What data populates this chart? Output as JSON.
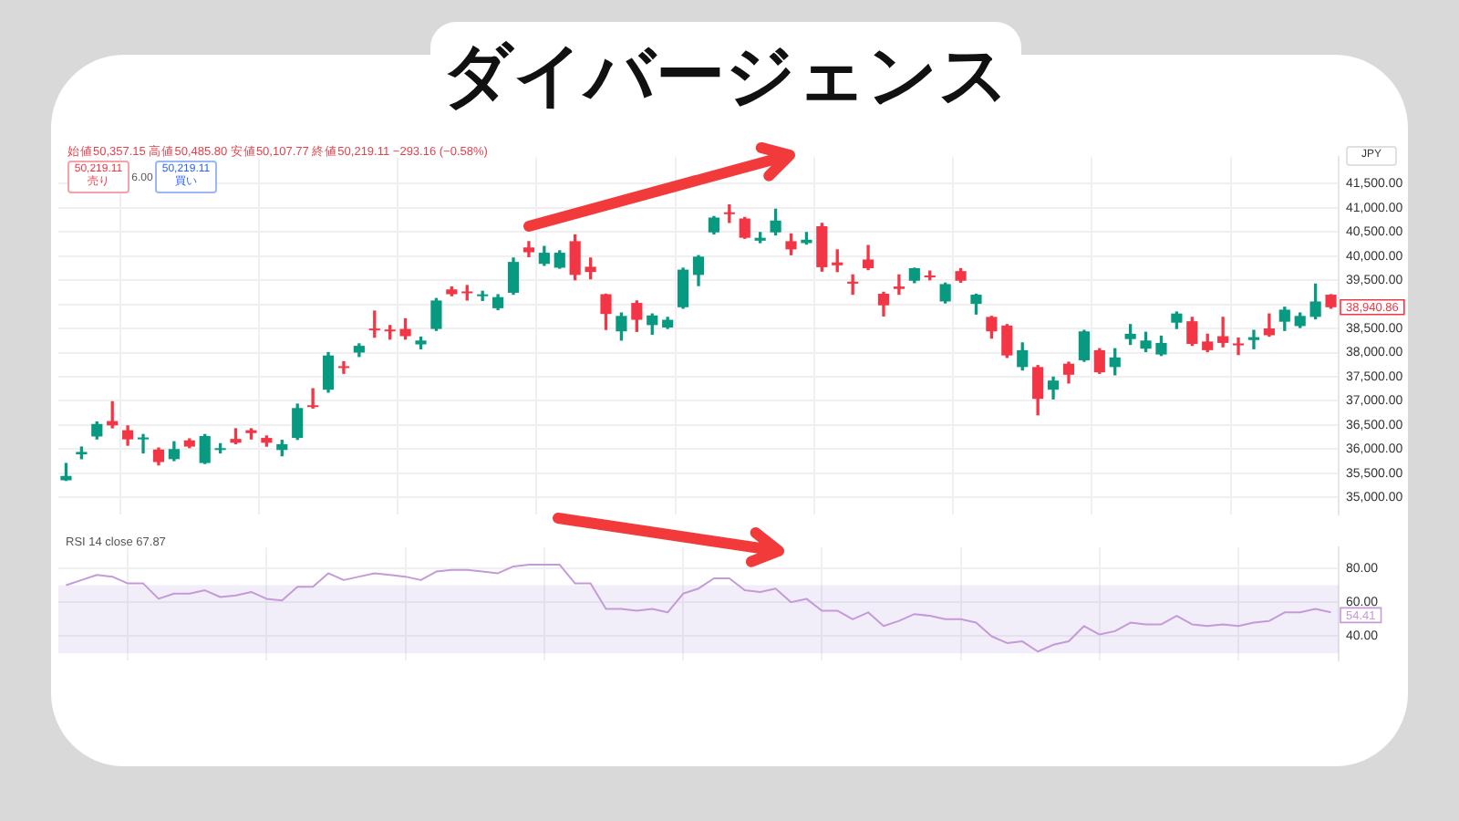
{
  "chart_data": [
    {
      "type": "candlestick",
      "title": "ダイバージェンス",
      "subtitle": "始値50,357.15 高値50,485.80 安値50,107.77 終値50,219.11 −293.16 (−0.58%)",
      "categories": [
        null,
        null,
        null,
        null,
        null,
        null,
        null,
        null,
        null,
        null,
        null,
        null,
        null,
        null,
        null,
        null,
        null,
        null,
        null,
        null,
        null,
        null,
        null,
        null,
        null,
        null,
        null,
        null,
        null,
        null,
        null,
        null,
        null,
        null,
        null,
        null,
        null,
        null,
        null,
        null,
        null,
        null,
        null,
        null,
        null,
        null,
        null,
        null,
        null,
        null,
        null,
        null,
        null,
        null,
        null,
        null,
        null,
        null,
        null,
        null,
        null,
        null,
        null,
        null,
        null,
        null,
        null,
        null,
        null,
        null,
        null,
        null,
        null,
        null,
        null,
        null,
        null,
        null,
        null,
        null,
        null,
        null,
        null
      ],
      "ohlc": [
        [
          35350,
          35700,
          35350,
          35440
        ],
        [
          35890,
          36040,
          35800,
          35940
        ],
        [
          36260,
          36560,
          36210,
          36520
        ],
        [
          36580,
          36980,
          36440,
          36490
        ],
        [
          36390,
          36480,
          36080,
          36200
        ],
        [
          36200,
          36300,
          35920,
          36240
        ],
        [
          35990,
          36020,
          35670,
          35730
        ],
        [
          35790,
          36150,
          35760,
          36000
        ],
        [
          36180,
          36210,
          36030,
          36050
        ],
        [
          35710,
          36300,
          35700,
          36270
        ],
        [
          35980,
          36110,
          35920,
          36000
        ],
        [
          36210,
          36420,
          36110,
          36130
        ],
        [
          36390,
          36420,
          36210,
          36330
        ],
        [
          36230,
          36270,
          36060,
          36130
        ],
        [
          35980,
          36180,
          35860,
          36100
        ],
        [
          36230,
          36930,
          36200,
          36850
        ],
        [
          36890,
          37250,
          36850,
          36870
        ],
        [
          37230,
          38000,
          37180,
          37940
        ],
        [
          37700,
          37810,
          37570,
          37680
        ],
        [
          38000,
          38180,
          37920,
          38140
        ],
        [
          38490,
          38860,
          38320,
          38460
        ],
        [
          38460,
          38560,
          38280,
          38440
        ],
        [
          38490,
          38700,
          38280,
          38340
        ],
        [
          38170,
          38320,
          38080,
          38250
        ],
        [
          38490,
          39120,
          38460,
          39080
        ],
        [
          39310,
          39360,
          39180,
          39210
        ],
        [
          39260,
          39390,
          39090,
          39230
        ],
        [
          39170,
          39270,
          39080,
          39200
        ],
        [
          38920,
          39200,
          38890,
          39150
        ],
        [
          39240,
          39960,
          39210,
          39880
        ],
        [
          40180,
          40300,
          39990,
          40080
        ],
        [
          39840,
          40200,
          39810,
          40070
        ],
        [
          39760,
          40110,
          39750,
          40070
        ],
        [
          40310,
          40440,
          39510,
          39610
        ],
        [
          39780,
          39960,
          39530,
          39670
        ],
        [
          39210,
          39210,
          38480,
          38800
        ],
        [
          38440,
          38820,
          38260,
          38760
        ],
        [
          39030,
          39070,
          38440,
          38680
        ],
        [
          38570,
          38800,
          38380,
          38770
        ],
        [
          38520,
          38730,
          38500,
          38680
        ],
        [
          38940,
          39750,
          38920,
          39720
        ],
        [
          39610,
          40010,
          39390,
          39990
        ],
        [
          40490,
          40820,
          40460,
          40800
        ],
        [
          40910,
          41060,
          40700,
          40870
        ],
        [
          40780,
          40800,
          40370,
          40380
        ],
        [
          40320,
          40490,
          40280,
          40380
        ],
        [
          40490,
          40970,
          40440,
          40740
        ],
        [
          40310,
          40460,
          40030,
          40140
        ],
        [
          40270,
          40490,
          40250,
          40340
        ],
        [
          40620,
          40680,
          39690,
          39770
        ],
        [
          39870,
          40130,
          39680,
          39810
        ],
        [
          39470,
          39610,
          39210,
          39430
        ],
        [
          39930,
          40220,
          39720,
          39750
        ],
        [
          39220,
          39250,
          38760,
          38980
        ],
        [
          39370,
          39610,
          39210,
          39320
        ],
        [
          39490,
          39750,
          39450,
          39750
        ],
        [
          39590,
          39690,
          39510,
          39560
        ],
        [
          39060,
          39440,
          39030,
          39420
        ],
        [
          39690,
          39740,
          39460,
          39490
        ],
        [
          39010,
          39210,
          38800,
          39200
        ],
        [
          38740,
          38750,
          38300,
          38440
        ],
        [
          38560,
          38580,
          37900,
          37940
        ],
        [
          37700,
          38200,
          37640,
          38050
        ],
        [
          37700,
          37730,
          36710,
          37040
        ],
        [
          37230,
          37490,
          37040,
          37420
        ],
        [
          37770,
          37800,
          37370,
          37540
        ],
        [
          37840,
          38460,
          37820,
          38440
        ],
        [
          38050,
          38080,
          37570,
          37590
        ],
        [
          37700,
          38080,
          37540,
          37900
        ],
        [
          38280,
          38580,
          38170,
          38390
        ],
        [
          38080,
          38420,
          38020,
          38250
        ],
        [
          37960,
          38340,
          37940,
          38200
        ],
        [
          38620,
          38840,
          38500,
          38810
        ],
        [
          38650,
          38730,
          38150,
          38180
        ],
        [
          38230,
          38380,
          38020,
          38050
        ],
        [
          38340,
          38730,
          38120,
          38200
        ],
        [
          38190,
          38300,
          37960,
          38150
        ],
        [
          38260,
          38460,
          38080,
          38320
        ],
        [
          38500,
          38800,
          38340,
          38360
        ],
        [
          38640,
          38940,
          38460,
          38890
        ],
        [
          38550,
          38820,
          38520,
          38760
        ],
        [
          38740,
          39420,
          38700,
          39060
        ],
        [
          39200,
          39200,
          38920,
          38940
        ]
      ],
      "ylim": [
        34650,
        42050
      ],
      "yticks": [
        {
          "value": 35000,
          "label": "35,000.00"
        },
        {
          "value": 35500,
          "label": "35,500.00"
        },
        {
          "value": 36000,
          "label": "36,000.00"
        },
        {
          "value": 36500,
          "label": "36,500.00"
        },
        {
          "value": 37000,
          "label": "37,000.00"
        },
        {
          "value": 37500,
          "label": "37,500.00"
        },
        {
          "value": 38000,
          "label": "38,000.00"
        },
        {
          "value": 38500,
          "label": "38,500.00"
        },
        {
          "value": 39000,
          "label": null
        },
        {
          "value": 39500,
          "label": "39,500.00"
        },
        {
          "value": 40000,
          "label": "40,000.00"
        },
        {
          "value": 40500,
          "label": "40,500.00"
        },
        {
          "value": 41000,
          "label": "41,000.00"
        },
        {
          "value": 41500,
          "label": "41,500.00"
        }
      ],
      "grid": true,
      "tick_labels": "y",
      "annotations": [
        "50,219.11 売り",
        "6.00",
        "50,219.11 買い",
        "JPY",
        "38,940.86"
      ]
    },
    {
      "type": "line",
      "title": "RSI 14 close 67.87",
      "categories": [
        null,
        null,
        null,
        null,
        null,
        null,
        null,
        null,
        null,
        null,
        null,
        null,
        null,
        null,
        null,
        null,
        null,
        null,
        null,
        null,
        null,
        null,
        null,
        null,
        null,
        null,
        null,
        null,
        null,
        null,
        null,
        null,
        null,
        null,
        null,
        null,
        null,
        null,
        null,
        null,
        null,
        null,
        null,
        null,
        null,
        null,
        null,
        null,
        null,
        null,
        null,
        null,
        null,
        null,
        null,
        null,
        null,
        null,
        null,
        null,
        null,
        null,
        null,
        null,
        null,
        null,
        null,
        null,
        null,
        null,
        null,
        null,
        null,
        null,
        null,
        null,
        null,
        null,
        null,
        null,
        null,
        null,
        null
      ],
      "series": [
        {
          "color": "#c49ad8",
          "values": [
            70,
            73,
            76,
            75,
            71,
            71,
            62,
            65,
            65,
            67,
            63,
            64,
            66,
            62,
            61,
            69,
            69,
            77,
            73,
            75,
            77,
            76,
            75,
            73,
            78,
            79,
            79,
            78,
            77,
            81,
            82,
            82,
            82,
            71,
            71,
            56,
            56,
            55,
            56,
            54,
            65,
            68,
            74,
            74,
            67,
            66,
            68,
            60,
            62,
            55,
            55,
            50,
            54,
            46,
            49,
            53,
            52,
            50,
            50,
            48,
            40,
            36,
            37,
            31,
            35,
            37,
            46,
            41,
            43,
            48,
            47,
            47,
            52,
            47,
            46,
            47,
            46,
            48,
            49,
            54,
            54,
            56,
            54
          ]
        }
      ],
      "ylim": [
        26,
        92
      ],
      "yticks": [
        {
          "value": 40,
          "label": "40.00"
        },
        {
          "value": 60,
          "label": "60.00"
        },
        {
          "value": 80,
          "label": "80.00"
        }
      ],
      "bands": [
        {
          "axis": "y",
          "from": 30,
          "to": 70,
          "color": "#7e57c2"
        }
      ],
      "grid": true,
      "tick_labels": "y",
      "marker": "none",
      "line_style": "solid",
      "annotations": [
        "54.41"
      ]
    }
  ]
}
